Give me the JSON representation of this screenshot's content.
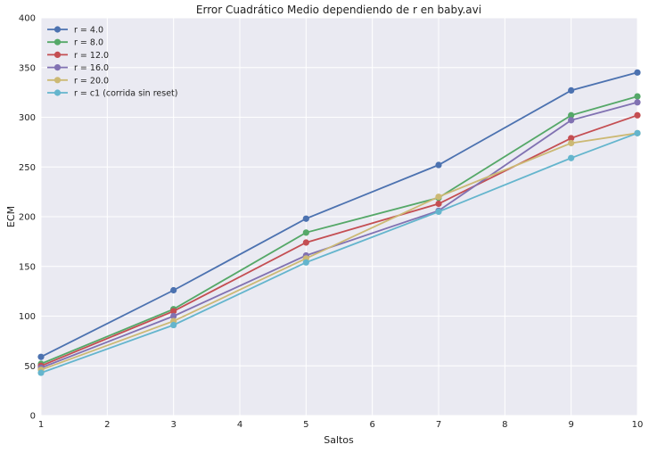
{
  "chart_data": {
    "type": "line",
    "title": "Error Cuadrático Medio dependiendo de r en baby.avi",
    "xlabel": "Saltos",
    "ylabel": "ECM",
    "xlim": [
      1,
      10
    ],
    "ylim": [
      0,
      400
    ],
    "xticks": [
      1,
      2,
      3,
      4,
      5,
      6,
      7,
      8,
      9,
      10
    ],
    "yticks": [
      0,
      50,
      100,
      150,
      200,
      250,
      300,
      350,
      400
    ],
    "grid": true,
    "legend_position": "top-left",
    "x": [
      1,
      3,
      5,
      7,
      9,
      10
    ],
    "series": [
      {
        "name": "r = 4.0",
        "color": "#4c72b0",
        "values": [
          59,
          126,
          198,
          252,
          327,
          345
        ]
      },
      {
        "name": "r = 8.0",
        "color": "#55a868",
        "values": [
          52,
          107,
          184,
          219,
          302,
          321
        ]
      },
      {
        "name": "r = 12.0",
        "color": "#c44e52",
        "values": [
          50,
          105,
          174,
          213,
          279,
          302
        ]
      },
      {
        "name": "r = 16.0",
        "color": "#8172b2",
        "values": [
          48,
          100,
          161,
          206,
          297,
          315
        ]
      },
      {
        "name": "r = 20.0",
        "color": "#ccb974",
        "values": [
          46,
          95,
          158,
          220,
          274,
          284
        ]
      },
      {
        "name": "r = c1 (corrida sin reset)",
        "color": "#64b5cd",
        "values": [
          43,
          91,
          154,
          205,
          259,
          284
        ]
      }
    ]
  }
}
